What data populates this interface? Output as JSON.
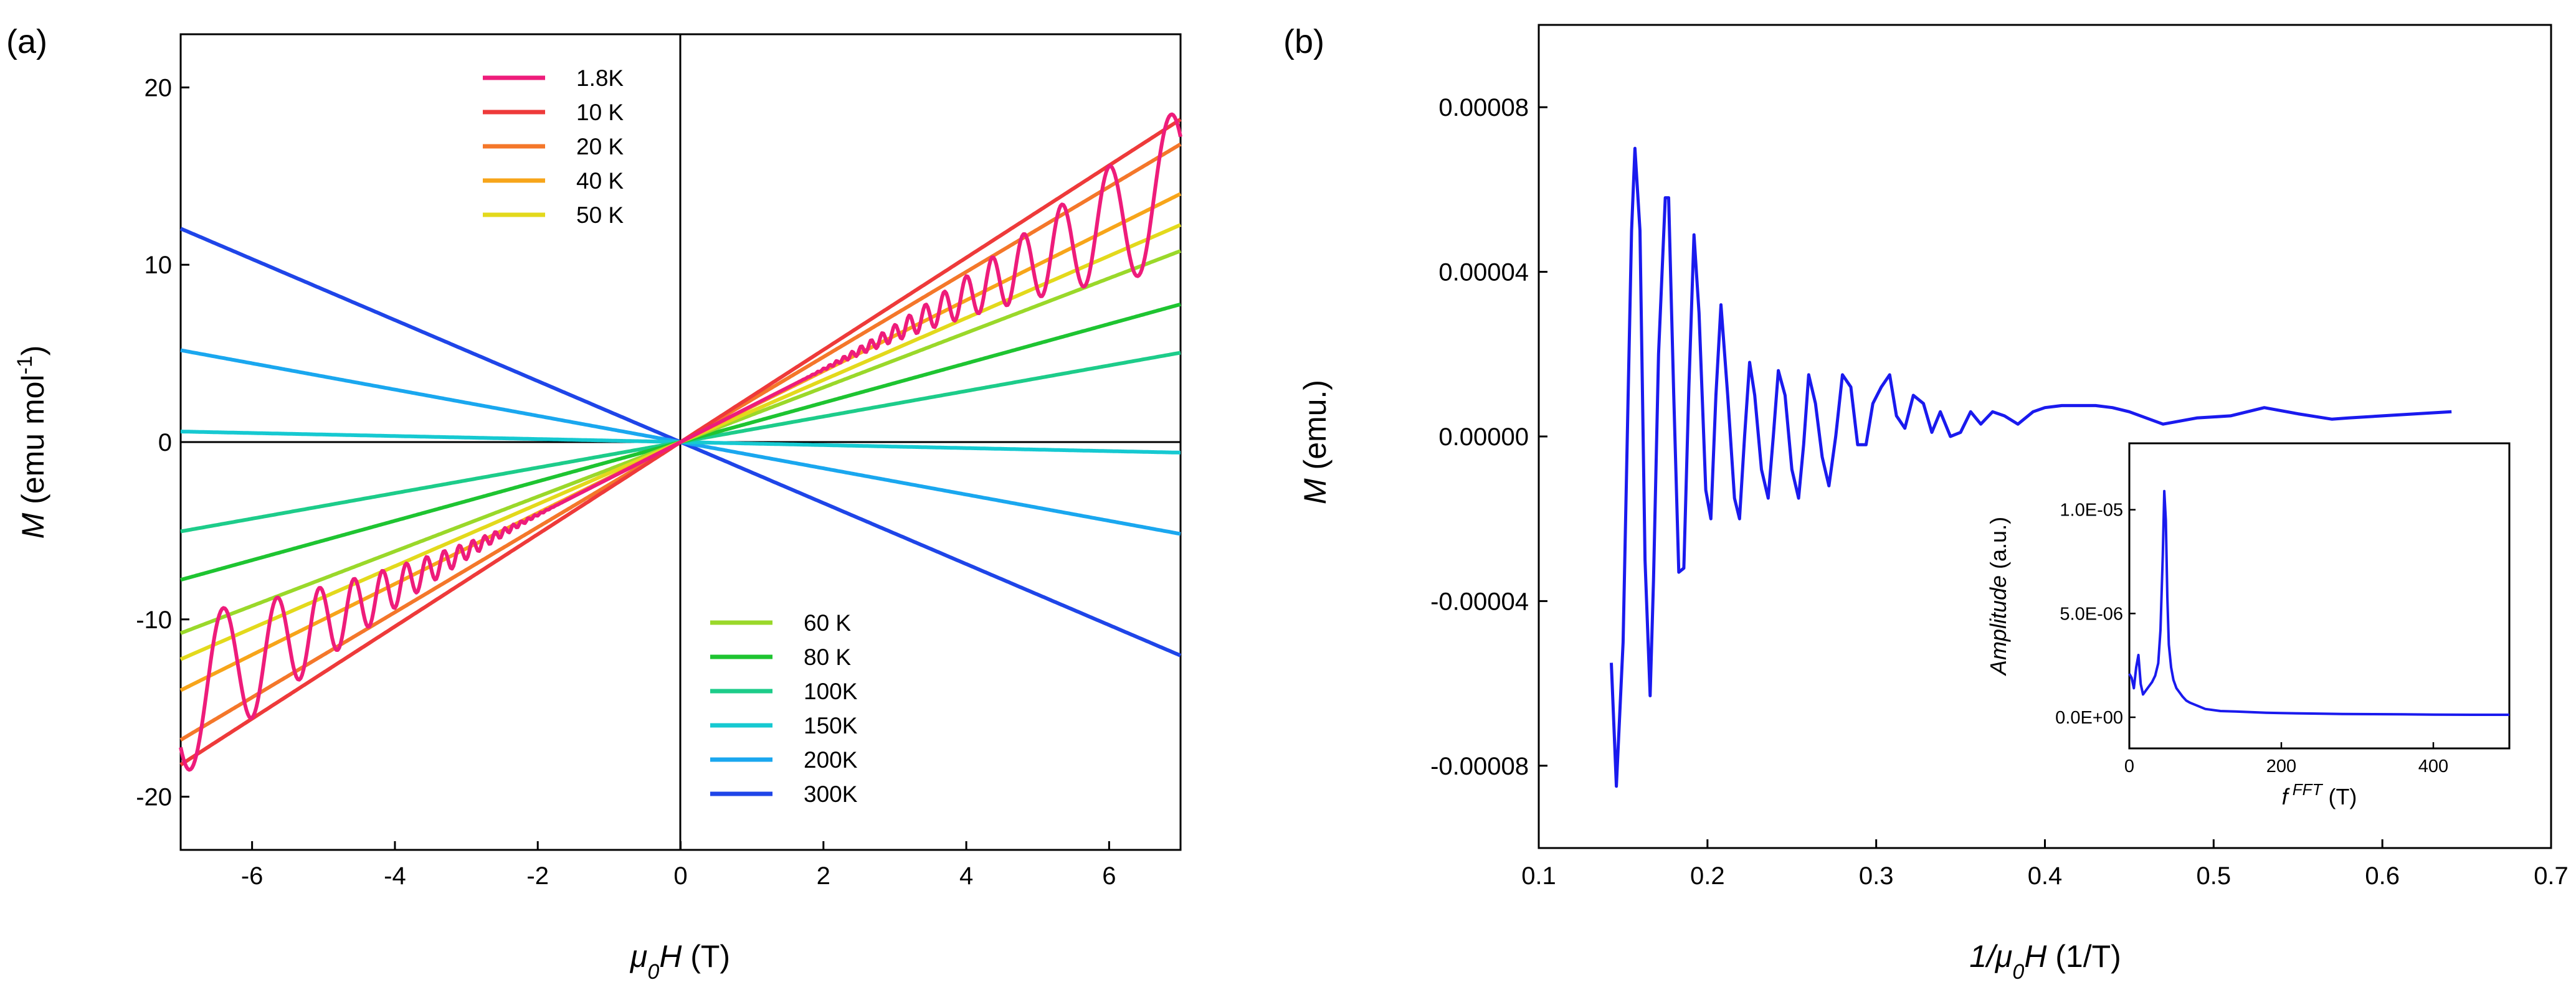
{
  "chart_data": [
    {
      "panel_label": "(a)",
      "type": "line",
      "xlabel": "μ0H (T)",
      "ylabel": "M (emu mol-1)",
      "xlim": [
        -7,
        7
      ],
      "ylim": [
        -23,
        23
      ],
      "xticks": [
        -6,
        -4,
        -2,
        0,
        2,
        4,
        6
      ],
      "yticks": [
        -20,
        -10,
        0,
        10,
        20
      ],
      "zero_lines": true,
      "legend_top_position": "top-left",
      "legend_bottom_position": "bottom-right",
      "series": [
        {
          "name": "1.8K",
          "color": "#ee1c7b",
          "slope": 2.05,
          "oscillation": {
            "threshold": 1.6,
            "amp_at_7T": 4.6,
            "frequency_T": 48
          }
        },
        {
          "name": "10 K",
          "color": "#ee3a3a",
          "slope": 2.6
        },
        {
          "name": "20 K",
          "color": "#f4772a",
          "slope": 2.4
        },
        {
          "name": "40 K",
          "color": "#f7a51a",
          "slope": 2.0
        },
        {
          "name": "50 K",
          "color": "#e3d91c",
          "slope": 1.75
        },
        {
          "name": "60 K",
          "color": "#9ad82a",
          "slope": 1.54
        },
        {
          "name": "80 K",
          "color": "#1ec431",
          "slope": 1.11
        },
        {
          "name": "100K",
          "color": "#1dcc8a",
          "slope": 0.72
        },
        {
          "name": "150K",
          "color": "#16c9d1",
          "slope": -0.085
        },
        {
          "name": "200K",
          "color": "#1aa7ef",
          "slope": -0.74
        },
        {
          "name": "300K",
          "color": "#1f45e8",
          "slope": -1.72
        }
      ]
    },
    {
      "panel_label": "(b)",
      "type": "line",
      "xlabel": "1/μ0H (1/T)",
      "ylabel": "M (emu.)",
      "xlim": [
        0.1,
        0.7
      ],
      "ylim": [
        -0.0001,
        0.0001
      ],
      "xticks": [
        0.1,
        0.2,
        0.3,
        0.4,
        0.5,
        0.6,
        0.7
      ],
      "xtick_labels": [
        "0.1",
        "0.2",
        "0.3",
        "0.4",
        "0.5",
        "0.6",
        "0.7"
      ],
      "yticks": [
        -8e-05,
        -4e-05,
        0,
        4e-05,
        8e-05
      ],
      "ytick_labels": [
        "-0.00008",
        "-0.00004",
        "0.00000",
        "0.00004",
        "0.00008"
      ],
      "series": [
        {
          "name": "",
          "color": "#1a1aee",
          "x": [
            0.143,
            0.146,
            0.15,
            0.153,
            0.155,
            0.157,
            0.16,
            0.163,
            0.166,
            0.168,
            0.171,
            0.175,
            0.177,
            0.18,
            0.183,
            0.186,
            0.189,
            0.192,
            0.195,
            0.199,
            0.202,
            0.205,
            0.208,
            0.212,
            0.216,
            0.219,
            0.222,
            0.225,
            0.228,
            0.232,
            0.236,
            0.239,
            0.242,
            0.246,
            0.25,
            0.254,
            0.257,
            0.26,
            0.264,
            0.268,
            0.272,
            0.276,
            0.28,
            0.285,
            0.289,
            0.294,
            0.298,
            0.303,
            0.308,
            0.312,
            0.317,
            0.322,
            0.328,
            0.333,
            0.338,
            0.344,
            0.35,
            0.356,
            0.362,
            0.369,
            0.376,
            0.384,
            0.393,
            0.4,
            0.41,
            0.42,
            0.43,
            0.44,
            0.45,
            0.47,
            0.49,
            0.51,
            0.53,
            0.55,
            0.57,
            0.58,
            0.6,
            0.62,
            0.641
          ],
          "y": [
            -5.5e-05,
            -8.5e-05,
            -5e-05,
            1e-05,
            5e-05,
            7e-05,
            5e-05,
            -3e-05,
            -6.3e-05,
            -3.5e-05,
            2e-05,
            5.8e-05,
            5.8e-05,
            1e-05,
            -3.3e-05,
            -3.2e-05,
            1.2e-05,
            4.9e-05,
            3e-05,
            -1.3e-05,
            -2e-05,
            1e-05,
            3.2e-05,
            1e-05,
            -1.5e-05,
            -2e-05,
            0.0,
            1.8e-05,
            1e-05,
            -8e-06,
            -1.5e-05,
            0.0,
            1.6e-05,
            1e-05,
            -8e-06,
            -1.5e-05,
            -2e-06,
            1.5e-05,
            8e-06,
            -5e-06,
            -1.2e-05,
            0.0,
            1.5e-05,
            1.2e-05,
            -2e-06,
            -2e-06,
            8e-06,
            1.2e-05,
            1.5e-05,
            5e-06,
            2e-06,
            1e-05,
            8e-06,
            1e-06,
            6e-06,
            0.0,
            1e-06,
            6e-06,
            3e-06,
            6e-06,
            5e-06,
            3e-06,
            6e-06,
            7e-06,
            7.5e-06,
            7.5e-06,
            7.5e-06,
            7e-06,
            6e-06,
            3e-06,
            4.5e-06,
            5e-06,
            7e-06,
            5.5e-06,
            4.2e-06,
            4.5e-06,
            5e-06,
            5.5e-06,
            6e-06
          ]
        }
      ],
      "inset": {
        "type": "line",
        "xlabel": "f FFT (T)",
        "ylabel": "Amplitude (a.u.)",
        "xlim": [
          0,
          500
        ],
        "ylim": [
          -1.5e-06,
          1.32e-05
        ],
        "xticks": [
          0,
          200,
          400
        ],
        "yticks": [
          0,
          5e-06,
          1e-05
        ],
        "ytick_labels": [
          "0.0E+00",
          "5.0E-06",
          "1.0E-05"
        ],
        "color": "#1a1aee",
        "x": [
          0,
          3,
          6,
          9,
          12,
          15,
          18,
          22,
          26,
          30,
          34,
          38,
          41,
          44,
          46,
          48,
          50,
          52,
          55,
          58,
          62,
          66,
          70,
          75,
          80,
          90,
          100,
          120,
          140,
          160,
          180,
          200,
          240,
          280,
          320,
          360,
          400,
          450,
          500
        ],
        "y": [
          2.1e-06,
          1.9e-06,
          1.4e-06,
          2.4e-06,
          3e-06,
          1.6e-06,
          1.1e-06,
          1.3e-06,
          1.5e-06,
          1.7e-06,
          2e-06,
          2.6e-06,
          4.2e-06,
          7.8e-06,
          1.09e-05,
          9.5e-06,
          5.8e-06,
          3.5e-06,
          2.4e-06,
          1.8e-06,
          1.4e-06,
          1.2e-06,
          1e-06,
          8e-07,
          7e-07,
          5.5e-07,
          4e-07,
          3e-07,
          2.8e-07,
          2.5e-07,
          2.2e-07,
          2e-07,
          1.8e-07,
          1.6e-07,
          1.5e-07,
          1.4e-07,
          1.3e-07,
          1.2e-07,
          1.2e-07
        ]
      }
    }
  ]
}
